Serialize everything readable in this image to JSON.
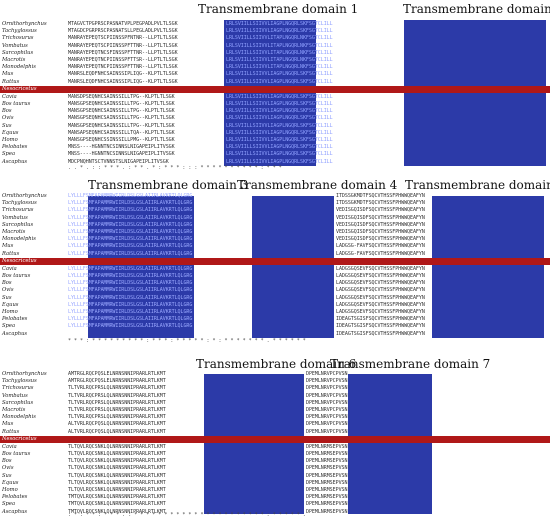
{
  "domains": {
    "tm1": "Transmembrane domain 1",
    "tm2": "Transmembrane domain 2",
    "tm3": "Transmembrane domain 3",
    "tm4": "Transmembrane domain 4",
    "tm5": "Transmembrane domain 5",
    "tm6": "Transmembrane domain 6",
    "tm7": "Transmembrane domain 7"
  },
  "highlighted_species": "Nesocricetus",
  "species_top": [
    "Ornithorhynchus",
    "Tachyglossus",
    "Trichosurus",
    "Vombatus",
    "Sarcophilus",
    "Macrotis",
    "Monodelphis",
    "Mus",
    "Rattus"
  ],
  "species_bottom": [
    "Cavia",
    "Bos taurus",
    "Bos",
    "Ovis",
    "Sus",
    "Equus",
    "Homo",
    "Pelobates",
    "Spea",
    "Ascaphus"
  ],
  "block1_seqs": [
    "MTAGVCTPGPRSCPASNATVPLPEGPADLPVLTLSGK",
    "MTAGDCPGRPRSCPASNATSLLPEGLADLPVLTLSGK",
    "MANRAYEPEQTSCPIINSSPFNTNR--LLPTLTLSGK",
    "MANRAYEPEQTSCPIINSSPFTTNR--LLPTLTLSGK",
    "MANRAYEPEQTNCSFINSSPFTTNR--LLPTLTLSGK",
    "MANRAYEPEQTNCPIINSSPFTTSR--LLPTLTLSGK",
    "MANRAYEPEQTNCPIINSSPFTTNR--LLPTLTLSGK",
    "MANRSLEQDFNHCSAINSSIPLIQG--KLPTLTLSGK",
    "MANRSLEQDFNHCSAINSSIPLIQG--KLPTLTLSGK"
  ],
  "block1_nes": "MANRSLEQDFNHCSAINSSIPLIQG--KLPTLTLSGK",
  "block1_seqs_b": [
    "MANSDPSEQNHCSAINSSILLTPG--KLPTLTLSGK",
    "MANSGPSEQNHCSAINSSILLTPG--KLPTLTLSGK",
    "MANSGPSEQNHCSAINSSILLTPG--KLPTLTLSGK",
    "MANSGPSEQNHCSAINSSILLTPG--KLPTLTLSGK",
    "MANSGPSEQNHCSAINSSILLTPG--KLPTLTLSGK",
    "MANSAPSEQNHCSAINSSILLTQA--KLPTLTLSGK",
    "MANSGPSEQNHCSSINSSILLPMG--KLPTLTLSGK",
    "MNSS----HGNNTNCSINNSLNIGAPEIPLITVSGK",
    "MNSS----HGNNTNCSINNSLNIGAPEIPLITVSGK",
    "MDCPNQHNTSCTVNNSTSLNIGAPEIPLITVSGK"
  ],
  "block2_seqs": [
    "LRLSVIILLSIIVVLIAGPLNGQRLSKFSGTCLILL",
    "LRLSVIILLSIIVVLIAGPLNGQRLSKFSGTCLILL",
    "LRLSVIILLSIIVVLITAPLNGQRLNKFSGTCLILL",
    "LRLSVIILLSIIVVLITAPLNGQRLNKFSGTCLILL",
    "LRLSVIILLSIIVVLITAPLNGQRLNKFSGTCLILL",
    "LRLSVIILLSIIVVLITAPLNGQRLNKFSGTCLILL",
    "LRLSVIILLSIIVVLITAPLNGQRLNKFSGTCLILL",
    "LRLSVIILLSIIVVLIAGPLNGQRLSKFSGTCLILL",
    "LRLSVIILLSIIVVLIAGPLNGQRLSKFSGTCLILL"
  ],
  "block2_seqs_b": [
    "LRLSVIILLSIIVVLIAGPLNGQRLSKFSGTCLILL",
    "LRLSVIILLSIIVVLIAGPLNGQRLSKFSGTCLILL",
    "LRLSVIILLSIIVVLIAGPLNGQRLSKFSGTCLILL",
    "LRLSVIILLSIIVVLIAGPLNGQRLSKFSGTCLILL",
    "LRLSVIILLSIIVVLIAGPLNGQRLSKFSGTCLILL",
    "LRLSVIILLSIIVVLIAGPLNGQRLSKFSGTCLILL",
    "LRLSVIILLSIIVVLIAGPLNGQRLSKFSGTCLILL",
    "LRLSVIILLSIIVVLIAGPLNGQRLSKFSGTCLILL",
    "LRLSVIILLSIIVVLIAGPLNGQRLSKFSGTCLILL",
    "LRLSVIILLSIIVVLIAGPLNGQRLSKFSGTCLILL"
  ],
  "block3_left": [
    "LYLLLFSMFAPAMMRWIIRLDSLGSLAIIRLAVKRTLQLGRG",
    "LYLLLFSMFAPAMMRWIIRLDSLGSLAIIRLAVKRTLQLGRG",
    "LYLLLFSMFAPAMMRWIIRLDSLGSLAIIRLAVKRTLQLGRG",
    "LYLLLFSMFAPAMMRWIIRLDSLGSLAIIRLAVKRTLQLGRG",
    "LYLLLFSMFAPAMMRWIIRLDSLGSLAIIRLAVKRTLQLGRG",
    "LYLLLFSMFAPAMMRWIIRLDSLGSLAIIRLAVKRTLQLGRG",
    "LYLLLFSMFAPAMMRWIIRLDSLGSLAIIRLAVKRTLQLGRG",
    "LYLLLFSMFAPAMMRWIIRLDSLGSLAIIRLAVKRTLQLGRG",
    "LYLLLFSMFAPAMMRWIIRLDSLGSLAIIRLAVKRTLQLGRG"
  ],
  "block3_mid": [
    "ITDSSGKMDTFSQCVTHSSFPHWWQEAFYN",
    "ITDSSGKMDTFSQCVTHSSFPHWWQEAFYN",
    "VEDISGQISDFSQCVTHSSFPHWWQEAFYN",
    "VEDISGQISDFSQCVTHSSFPHWWQEAFYN",
    "VEDISGQISDFSQCVTHSSFPHWWQEAFYN",
    "VEDISGQISDFSQCVTHSSFPHWWQEAFYN",
    "VEDISGQISDFSQCVTHSSFPHWWQEAFYN",
    "LADGSG-FAVFSQCVTHSSFPHWWQEAFYN",
    "LADGSG-FAVFSQCVTHSSFPHWWQEAFYN"
  ],
  "block3_mid_b": [
    "LADGSGQSEVFSQCVTHSSFPHWWQEAFYN",
    "LADGSGQSEVFSQCVTHSSFPHWWQEAFYN",
    "LADGSGQSEVFSQCVTHSSFPHWWQEAFYN",
    "LADGSGQSEVFSQCVTHSSFPHWWQEAFYN",
    "LADGSGQSEVFSQCVTHSSFPHWWQEAFYN",
    "LADGSGQSEVFSQCVTHSSFPHWWQEAFYN",
    "LADGSGQSEVFSQCVTHSSFPHWWQEAFYN",
    "IDEAGTSGISFSQCVTHSSFPHWWQEAFYN",
    "IDEAGTSGISFSQCVTHSSFPHWWQEAFYN",
    "IDEAGTSGISFSQCVTHSSFPHWWQEAFYN"
  ],
  "block4_left": [
    "AMTRGLRQCPQSLELNRNSNNIPRARLRTLKMT",
    "AMTRGLRQCPQSLELNRNSNNIPRARLRTLKMT",
    "TLTVRLRQCPRSLQLNRNSNNIPRARLRTLKMT",
    "TLTVRLRQCPRSLQLNRNSNNIPRARLRTLKMT",
    "TLTVRLRQCPRSLQLNRNSNNIPRARLRTLKMT",
    "TLTVRLRQCPRSLQLNRNSNNIPRARLRTLKMT",
    "TLTVRLRQCPRSLQLNRNSNNIPRARLRTLKMT",
    "ALTVRLRQCPQSLQLNRNSNNIPRARLRTLKMT",
    "ALTVRLRQCPQSLQLNRNSNNIPRARLRTLKMT"
  ],
  "block4_left_b": [
    "TLTQVLRQCSNKLQLNRNSNNIPRARLRTLKMT",
    "TLTQVLRQCSNKLQLNRNSNNIPRARLRTLKMT",
    "TLTQVLRQCSNKLQLNRNSNNIPRARLRTLKMT",
    "TLTQVLRQCSNKLQLNRNSNNIPRARLRTLKMT",
    "TLTQVLRQCSNKLQLNRNSNNIPRARLRTLKMT",
    "TLTQVLRQCSNKLQLNRNSNNIPRARLRTLKMT",
    "TLTQVLRQCSNKLQLNRNSNNIPRARLRTLKMT",
    "TMTQVLRQCSNKLQLNRNSNNIPRARLRTLKMT",
    "TMTQVLRQCSNKLQLNRNSNNIPRARLRTLKMT",
    "TMTQVLRQCSNKLQLNRNSNNIPRARLRTLKMT"
  ],
  "block4_mid": [
    "DPEMLNRVPCPVSN",
    "DPEMLNRVPCPVSN",
    "DPEMLNRVPCPVSN",
    "DPEMLNRVPCPVSN",
    "DPEMLNRVPCPVSN",
    "DPEMLNRVPCPVSN",
    "DPEMLNRVPCPVSN",
    "DPEMLNRVPCPVSN",
    "DPEMLNRVPCPVSN"
  ],
  "block4_mid_b": [
    "DPEMLNRMSEPVSN",
    "DPEMLNRMSEPVSN",
    "DPEMLNRMSEPVSN",
    "DPEMLNRMSEPVSN",
    "DPEMLNRMSEPVSN",
    "DPEMLNRMSEPVSN",
    "DPEMLNRMSEPVSN",
    "DPEMLNRMSEPVSN",
    "DPEMLNRMSEPVSN",
    "DPEMLNRMSEPVSN"
  ],
  "block4_end": "IL",
  "consensus1": ". . * . :   : * * * . : * * . * : * * * :   :   : *   * * * * * * * * * : * * *",
  "consensus2": "* * * : * * * * * * * * * : * * * : * * * * * : * :   * * * * * * * . * * * * * *",
  "consensus3": ": * : * * : * * * . : * * * * * * * * *   * *   * * * * * * * * * * * : * * * * * ."
}
